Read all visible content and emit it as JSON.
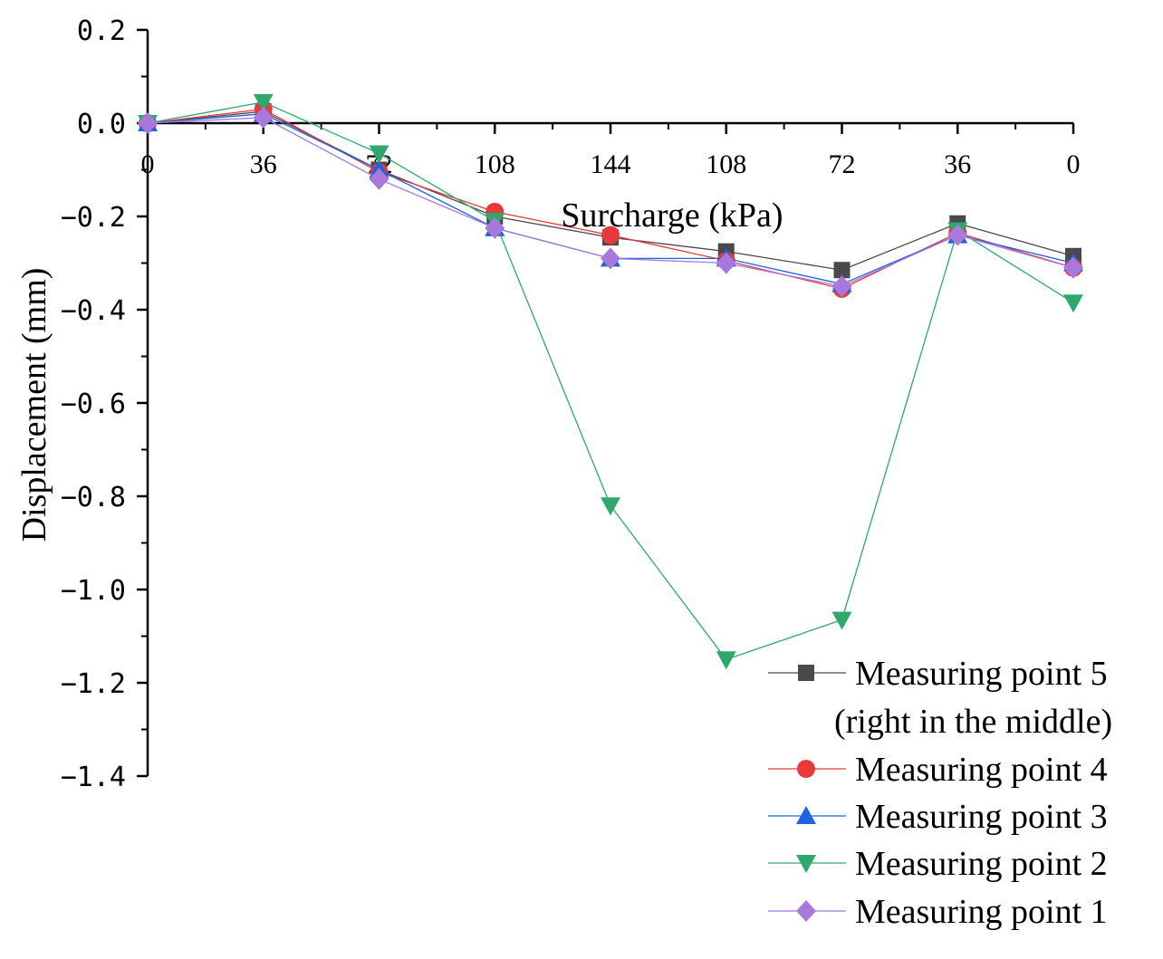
{
  "chart_data": {
    "type": "line",
    "title": "",
    "xlabel": "Surcharge (kPa)",
    "ylabel": "Displacement (mm)",
    "categories": [
      "0",
      "36",
      "72",
      "108",
      "144",
      "108",
      "72",
      "36",
      "0"
    ],
    "ylim": [
      -1.4,
      0.2
    ],
    "yticks": [
      0.2,
      0.0,
      -0.2,
      -0.4,
      -0.6,
      -0.8,
      -1.0,
      -1.2,
      -1.4
    ],
    "ytick_labels": [
      "0.2",
      "0.0",
      "−0.2",
      "−0.4",
      "−0.6",
      "−0.8",
      "−1.0",
      "−1.2",
      "−1.4"
    ],
    "grid": false,
    "legend_position": "bottom-right",
    "series": [
      {
        "name": "Measuring point 5",
        "name_line2": "(right in the middle)",
        "marker": "square",
        "color": "#4a4a4a",
        "values": [
          0.0,
          0.025,
          -0.1,
          -0.2,
          -0.245,
          -0.275,
          -0.315,
          -0.215,
          -0.285
        ]
      },
      {
        "name": "Measuring point 4",
        "marker": "circle",
        "color": "#e83a3a",
        "values": [
          0.0,
          0.03,
          -0.105,
          -0.19,
          -0.24,
          -0.295,
          -0.355,
          -0.235,
          -0.31
        ]
      },
      {
        "name": "Measuring point 3",
        "marker": "triangle-up",
        "color": "#1f63e0",
        "values": [
          0.0,
          0.02,
          -0.1,
          -0.225,
          -0.29,
          -0.29,
          -0.345,
          -0.24,
          -0.3
        ]
      },
      {
        "name": "Measuring point 2",
        "marker": "triangle-down",
        "color": "#2ea86b",
        "values": [
          0.0,
          0.045,
          -0.065,
          -0.21,
          -0.82,
          -1.15,
          -1.065,
          -0.23,
          -0.385
        ]
      },
      {
        "name": "Measuring point 1",
        "marker": "diamond",
        "color": "#a878dc",
        "values": [
          0.0,
          0.012,
          -0.12,
          -0.225,
          -0.29,
          -0.3,
          -0.35,
          -0.24,
          -0.31
        ]
      }
    ]
  }
}
